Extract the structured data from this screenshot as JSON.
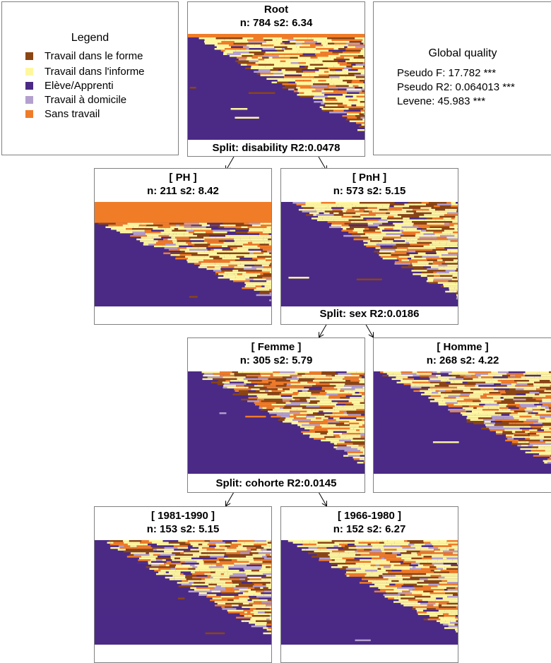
{
  "legend": {
    "title": "Legend",
    "items": [
      {
        "label": "Travail dans le forme",
        "color": "#8b4513"
      },
      {
        "label": "Travail dans l'informe",
        "color": "#fff7a0"
      },
      {
        "label": "Elève/Apprenti",
        "color": "#4b2a86"
      },
      {
        "label": "Travail à domicile",
        "color": "#b4a0cf"
      },
      {
        "label": "Sans travail",
        "color": "#f07c28"
      }
    ]
  },
  "quality": {
    "title": "Global quality",
    "lines": [
      "Pseudo F: 17.782 ***",
      "Pseudo R2: 0.064013 ***",
      "Levene: 45.983 ***"
    ]
  },
  "nodes": {
    "root": {
      "title": "Root",
      "stats": "n: 784 s2: 6.34"
    },
    "ph": {
      "title": "[ PH ]",
      "stats": "n: 211 s2: 8.42"
    },
    "pnh": {
      "title": "[ PnH ]",
      "stats": "n: 573 s2: 5.15"
    },
    "femme": {
      "title": "[ Femme ]",
      "stats": "n: 305 s2: 5.79"
    },
    "homme": {
      "title": "[ Homme ]",
      "stats": "n: 268 s2: 4.22"
    },
    "c8190": {
      "title": "[ 1981-1990 ]",
      "stats": "n: 153 s2: 5.15"
    },
    "c6680": {
      "title": "[ 1966-1980 ]",
      "stats": "n: 152 s2: 6.27"
    }
  },
  "splits": {
    "root": "Split: disability R2:0.0478",
    "pnh": "Split: sex R2:0.0186",
    "femme": "Split: cohorte R2:0.0145"
  }
}
